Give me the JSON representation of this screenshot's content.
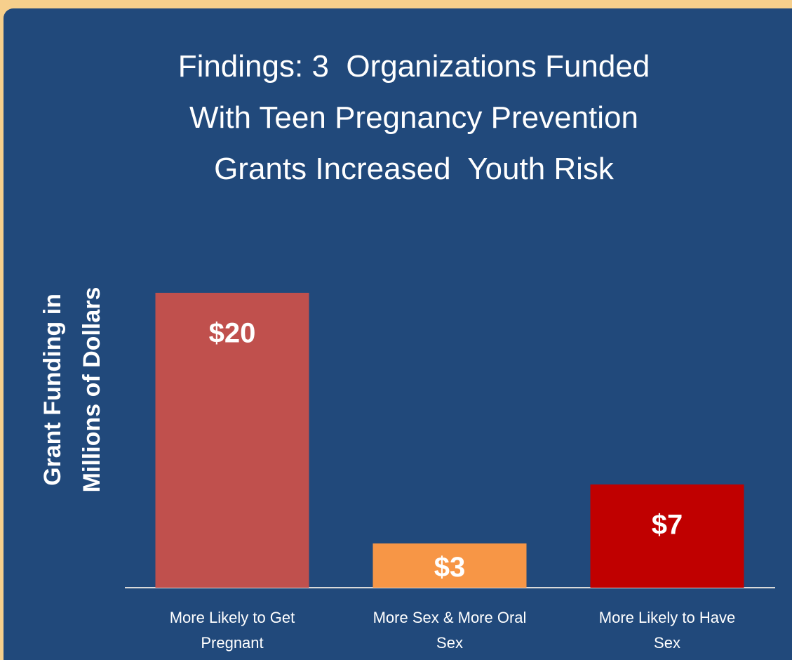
{
  "chart_data": {
    "type": "bar",
    "title": "Findings: 3  Organizations Funded\nWith Teen Pregnancy Prevention\nGrants Increased  Youth Risk",
    "ylabel": "Grant Funding in\nMillions of Dollars",
    "categories": [
      "More Likely to Get\nPregnant",
      "More Sex & More Oral\nSex",
      "More Likely to Have\nSex"
    ],
    "values": [
      20,
      3,
      7
    ],
    "value_labels": [
      "$20",
      "$3",
      "$7"
    ],
    "colors": [
      "#c0504d",
      "#f79646",
      "#c00000"
    ]
  }
}
